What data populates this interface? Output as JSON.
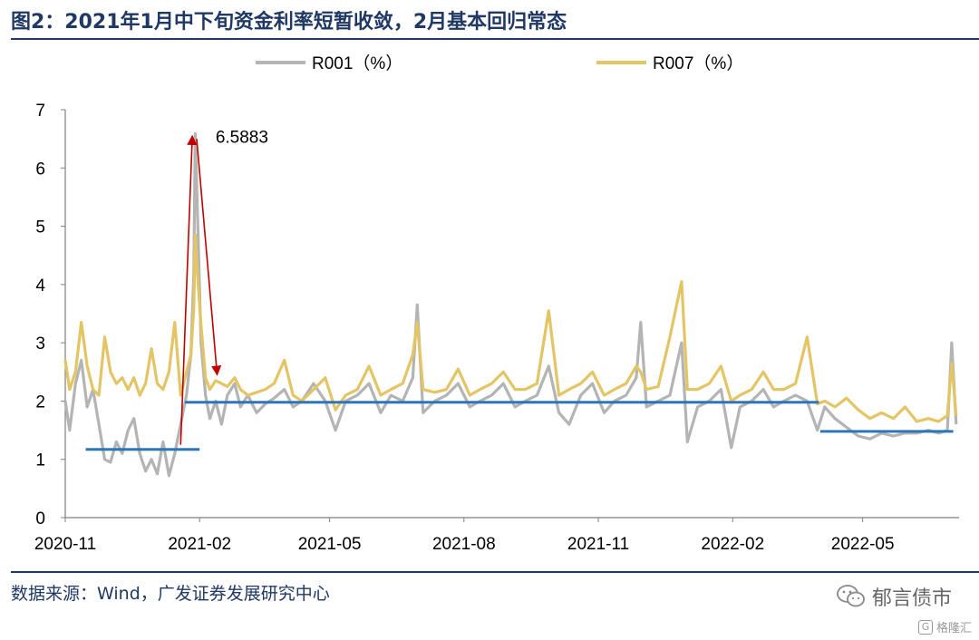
{
  "header": {
    "title": "图2：2021年1月中下旬资金利率短暂收敛，2月基本回归常态"
  },
  "footer": {
    "source": "数据来源：Wind，广发证券发展研究中心"
  },
  "watermark": {
    "account_name": "郁言债市",
    "account_icon": "wechat-icon",
    "brand_name": "格隆汇",
    "brand_badge": "G"
  },
  "chart_data": {
    "type": "line",
    "title": "",
    "xlabel": "",
    "ylabel": "",
    "x_range": [
      "2020-11-01",
      "2022-07-06"
    ],
    "x_ticks": [
      "2020-11",
      "2021-02",
      "2021-05",
      "2021-08",
      "2021-11",
      "2022-02",
      "2022-05"
    ],
    "ylim": [
      0,
      7
    ],
    "y_ticks": [
      0,
      1,
      2,
      3,
      4,
      5,
      6,
      7
    ],
    "legend_position": "top",
    "grid": false,
    "series": [
      {
        "name": "R001（%）",
        "color": "#b4b4b4",
        "points": [
          [
            "2020-11-01",
            2.0
          ],
          [
            "2020-11-04",
            1.5
          ],
          [
            "2020-11-08",
            2.3
          ],
          [
            "2020-11-12",
            2.7
          ],
          [
            "2020-11-16",
            1.9
          ],
          [
            "2020-11-20",
            2.2
          ],
          [
            "2020-11-24",
            1.6
          ],
          [
            "2020-11-28",
            1.0
          ],
          [
            "2020-12-02",
            0.95
          ],
          [
            "2020-12-06",
            1.3
          ],
          [
            "2020-12-10",
            1.1
          ],
          [
            "2020-12-14",
            1.5
          ],
          [
            "2020-12-18",
            1.7
          ],
          [
            "2020-12-22",
            1.1
          ],
          [
            "2020-12-26",
            0.8
          ],
          [
            "2020-12-30",
            1.0
          ],
          [
            "2021-01-03",
            0.75
          ],
          [
            "2021-01-07",
            1.3
          ],
          [
            "2021-01-11",
            0.72
          ],
          [
            "2021-01-15",
            1.1
          ],
          [
            "2021-01-19",
            1.6
          ],
          [
            "2021-01-23",
            2.1
          ],
          [
            "2021-01-26",
            2.8
          ],
          [
            "2021-01-28",
            4.2
          ],
          [
            "2021-01-29",
            6.5883
          ],
          [
            "2021-01-31",
            4.8
          ],
          [
            "2021-02-02",
            3.0
          ],
          [
            "2021-02-05",
            2.1
          ],
          [
            "2021-02-08",
            1.7
          ],
          [
            "2021-02-12",
            2.0
          ],
          [
            "2021-02-16",
            1.6
          ],
          [
            "2021-02-20",
            2.1
          ],
          [
            "2021-02-25",
            2.3
          ],
          [
            "2021-03-01",
            1.9
          ],
          [
            "2021-03-06",
            2.1
          ],
          [
            "2021-03-12",
            1.8
          ],
          [
            "2021-03-18",
            1.95
          ],
          [
            "2021-03-24",
            2.05
          ],
          [
            "2021-03-31",
            2.2
          ],
          [
            "2021-04-06",
            1.9
          ],
          [
            "2021-04-12",
            2.0
          ],
          [
            "2021-04-20",
            2.3
          ],
          [
            "2021-04-28",
            2.0
          ],
          [
            "2021-05-05",
            1.5
          ],
          [
            "2021-05-12",
            2.0
          ],
          [
            "2021-05-20",
            2.1
          ],
          [
            "2021-05-28",
            2.3
          ],
          [
            "2021-06-05",
            1.8
          ],
          [
            "2021-06-12",
            2.1
          ],
          [
            "2021-06-20",
            2.0
          ],
          [
            "2021-06-27",
            2.4
          ],
          [
            "2021-06-30",
            3.65
          ],
          [
            "2021-07-04",
            1.8
          ],
          [
            "2021-07-12",
            2.0
          ],
          [
            "2021-07-20",
            2.1
          ],
          [
            "2021-07-28",
            2.3
          ],
          [
            "2021-08-05",
            1.9
          ],
          [
            "2021-08-12",
            2.0
          ],
          [
            "2021-08-20",
            2.1
          ],
          [
            "2021-08-28",
            2.3
          ],
          [
            "2021-09-05",
            1.9
          ],
          [
            "2021-09-12",
            2.0
          ],
          [
            "2021-09-20",
            2.1
          ],
          [
            "2021-09-28",
            2.6
          ],
          [
            "2021-10-05",
            1.8
          ],
          [
            "2021-10-12",
            1.6
          ],
          [
            "2021-10-20",
            2.1
          ],
          [
            "2021-10-28",
            2.3
          ],
          [
            "2021-11-05",
            1.8
          ],
          [
            "2021-11-12",
            2.0
          ],
          [
            "2021-11-20",
            2.1
          ],
          [
            "2021-11-27",
            2.4
          ],
          [
            "2021-11-30",
            3.35
          ],
          [
            "2021-12-04",
            1.9
          ],
          [
            "2021-12-12",
            2.0
          ],
          [
            "2021-12-20",
            2.1
          ],
          [
            "2021-12-28",
            3.0
          ],
          [
            "2022-01-01",
            1.3
          ],
          [
            "2022-01-08",
            1.9
          ],
          [
            "2022-01-16",
            2.0
          ],
          [
            "2022-01-24",
            2.2
          ],
          [
            "2022-01-31",
            1.2
          ],
          [
            "2022-02-06",
            1.9
          ],
          [
            "2022-02-14",
            2.0
          ],
          [
            "2022-02-22",
            2.2
          ],
          [
            "2022-03-01",
            1.9
          ],
          [
            "2022-03-08",
            2.0
          ],
          [
            "2022-03-16",
            2.1
          ],
          [
            "2022-03-24",
            2.0
          ],
          [
            "2022-03-31",
            1.5
          ],
          [
            "2022-04-05",
            1.9
          ],
          [
            "2022-04-12",
            1.7
          ],
          [
            "2022-04-20",
            1.55
          ],
          [
            "2022-04-28",
            1.4
          ],
          [
            "2022-05-06",
            1.35
          ],
          [
            "2022-05-14",
            1.45
          ],
          [
            "2022-05-22",
            1.4
          ],
          [
            "2022-05-30",
            1.45
          ],
          [
            "2022-06-07",
            1.45
          ],
          [
            "2022-06-15",
            1.5
          ],
          [
            "2022-06-22",
            1.45
          ],
          [
            "2022-06-28",
            1.5
          ],
          [
            "2022-07-01",
            3.0
          ],
          [
            "2022-07-04",
            1.6
          ]
        ]
      },
      {
        "name": "R007（%）",
        "color": "#e3c565",
        "points": [
          [
            "2020-11-01",
            2.7
          ],
          [
            "2020-11-04",
            2.2
          ],
          [
            "2020-11-08",
            2.5
          ],
          [
            "2020-11-12",
            3.35
          ],
          [
            "2020-11-16",
            2.6
          ],
          [
            "2020-11-20",
            2.2
          ],
          [
            "2020-11-24",
            2.1
          ],
          [
            "2020-11-28",
            3.1
          ],
          [
            "2020-12-02",
            2.5
          ],
          [
            "2020-12-06",
            2.3
          ],
          [
            "2020-12-10",
            2.4
          ],
          [
            "2020-12-14",
            2.2
          ],
          [
            "2020-12-18",
            2.4
          ],
          [
            "2020-12-22",
            2.1
          ],
          [
            "2020-12-26",
            2.3
          ],
          [
            "2020-12-30",
            2.9
          ],
          [
            "2021-01-03",
            2.3
          ],
          [
            "2021-01-07",
            2.2
          ],
          [
            "2021-01-11",
            2.5
          ],
          [
            "2021-01-15",
            3.35
          ],
          [
            "2021-01-19",
            2.1
          ],
          [
            "2021-01-23",
            2.5
          ],
          [
            "2021-01-26",
            2.8
          ],
          [
            "2021-01-28",
            3.6
          ],
          [
            "2021-01-29",
            4.85
          ],
          [
            "2021-01-31",
            4.0
          ],
          [
            "2021-02-02",
            3.3
          ],
          [
            "2021-02-05",
            2.4
          ],
          [
            "2021-02-08",
            2.2
          ],
          [
            "2021-02-12",
            2.35
          ],
          [
            "2021-02-16",
            2.3
          ],
          [
            "2021-02-20",
            2.25
          ],
          [
            "2021-02-25",
            2.4
          ],
          [
            "2021-03-01",
            2.2
          ],
          [
            "2021-03-06",
            2.1
          ],
          [
            "2021-03-12",
            2.15
          ],
          [
            "2021-03-18",
            2.2
          ],
          [
            "2021-03-24",
            2.3
          ],
          [
            "2021-03-31",
            2.7
          ],
          [
            "2021-04-06",
            2.1
          ],
          [
            "2021-04-12",
            2.0
          ],
          [
            "2021-04-20",
            2.2
          ],
          [
            "2021-04-28",
            2.4
          ],
          [
            "2021-05-05",
            1.85
          ],
          [
            "2021-05-12",
            2.1
          ],
          [
            "2021-05-20",
            2.2
          ],
          [
            "2021-05-28",
            2.6
          ],
          [
            "2021-06-05",
            2.1
          ],
          [
            "2021-06-12",
            2.2
          ],
          [
            "2021-06-20",
            2.3
          ],
          [
            "2021-06-27",
            2.8
          ],
          [
            "2021-06-30",
            3.35
          ],
          [
            "2021-07-04",
            2.2
          ],
          [
            "2021-07-12",
            2.15
          ],
          [
            "2021-07-20",
            2.2
          ],
          [
            "2021-07-28",
            2.55
          ],
          [
            "2021-08-05",
            2.1
          ],
          [
            "2021-08-12",
            2.2
          ],
          [
            "2021-08-20",
            2.3
          ],
          [
            "2021-08-28",
            2.5
          ],
          [
            "2021-09-05",
            2.2
          ],
          [
            "2021-09-12",
            2.2
          ],
          [
            "2021-09-20",
            2.3
          ],
          [
            "2021-09-28",
            3.55
          ],
          [
            "2021-10-05",
            2.1
          ],
          [
            "2021-10-12",
            2.2
          ],
          [
            "2021-10-20",
            2.3
          ],
          [
            "2021-10-28",
            2.5
          ],
          [
            "2021-11-05",
            2.1
          ],
          [
            "2021-11-12",
            2.2
          ],
          [
            "2021-11-20",
            2.3
          ],
          [
            "2021-11-27",
            2.6
          ],
          [
            "2021-11-30",
            2.5
          ],
          [
            "2021-12-04",
            2.2
          ],
          [
            "2021-12-12",
            2.25
          ],
          [
            "2021-12-20",
            3.1
          ],
          [
            "2021-12-28",
            4.05
          ],
          [
            "2022-01-01",
            2.2
          ],
          [
            "2022-01-08",
            2.2
          ],
          [
            "2022-01-16",
            2.3
          ],
          [
            "2022-01-24",
            2.6
          ],
          [
            "2022-01-31",
            2.0
          ],
          [
            "2022-02-06",
            2.1
          ],
          [
            "2022-02-14",
            2.2
          ],
          [
            "2022-02-22",
            2.5
          ],
          [
            "2022-03-01",
            2.2
          ],
          [
            "2022-03-08",
            2.2
          ],
          [
            "2022-03-16",
            2.3
          ],
          [
            "2022-03-24",
            3.1
          ],
          [
            "2022-03-31",
            1.95
          ],
          [
            "2022-04-05",
            2.0
          ],
          [
            "2022-04-12",
            1.9
          ],
          [
            "2022-04-20",
            2.05
          ],
          [
            "2022-04-28",
            1.85
          ],
          [
            "2022-05-06",
            1.7
          ],
          [
            "2022-05-14",
            1.8
          ],
          [
            "2022-05-22",
            1.7
          ],
          [
            "2022-05-30",
            1.9
          ],
          [
            "2022-06-07",
            1.65
          ],
          [
            "2022-06-15",
            1.7
          ],
          [
            "2022-06-22",
            1.65
          ],
          [
            "2022-06-28",
            1.75
          ],
          [
            "2022-07-01",
            2.65
          ],
          [
            "2022-07-04",
            1.75
          ]
        ]
      }
    ],
    "reference_lines": [
      {
        "x_start": "2020-11-15",
        "x_end": "2021-02-01",
        "y": 1.17,
        "color": "#2e75b6"
      },
      {
        "x_start": "2021-01-22",
        "x_end": "2022-04-01",
        "y": 1.98,
        "color": "#2e75b6"
      },
      {
        "x_start": "2022-04-02",
        "x_end": "2022-07-02",
        "y": 1.48,
        "color": "#2e75b6"
      }
    ],
    "arrows": [
      {
        "from": [
          "2021-01-19",
          1.25
        ],
        "to": [
          "2021-01-27",
          6.55
        ],
        "color": "#c00000"
      },
      {
        "from": [
          "2021-01-30",
          6.5
        ],
        "to": [
          "2021-02-13",
          2.45
        ],
        "color": "#c00000"
      }
    ],
    "annotations": [
      {
        "text": "6.5883",
        "x": "2021-02-02",
        "y": 6.5883
      }
    ]
  }
}
